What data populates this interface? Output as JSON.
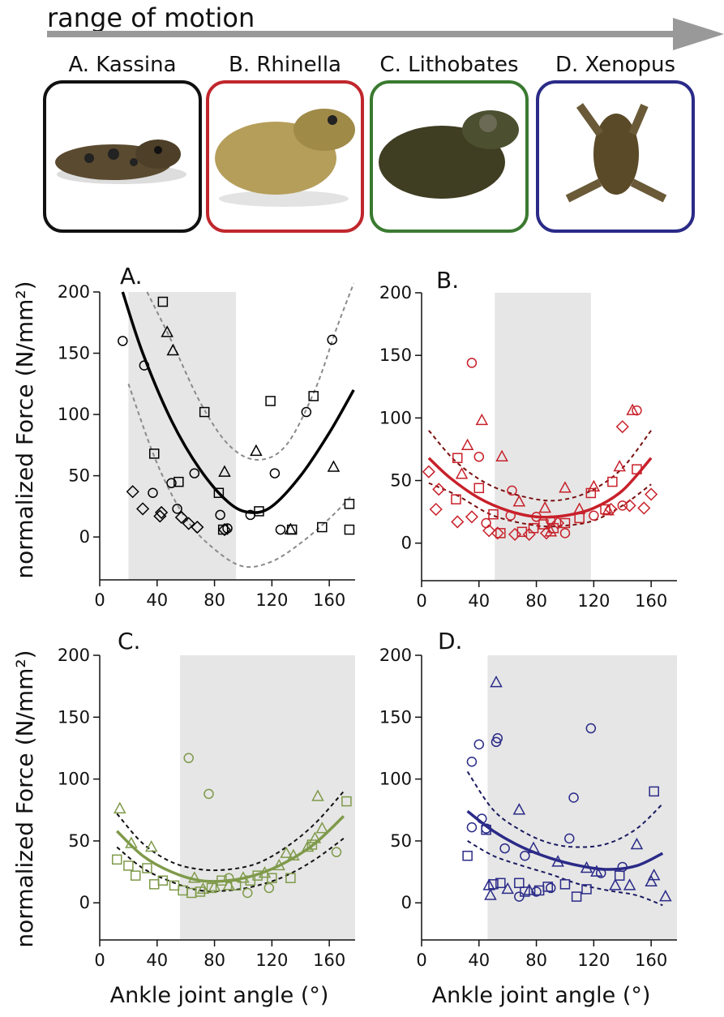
{
  "header": {
    "title": "range of motion"
  },
  "species": [
    {
      "label": "A. Kassina",
      "color": "#111111"
    },
    {
      "label": "B. Rhinella",
      "color": "#c0272d"
    },
    {
      "label": "C. Lithobates",
      "color": "#3a7a30"
    },
    {
      "label": "D. Xenopus",
      "color": "#2a2a88"
    }
  ],
  "chart_data": [
    {
      "type": "scatter",
      "title": "A.",
      "ylabel": "normalized Force (N/mm²)",
      "xlim": [
        0,
        178
      ],
      "ylim": [
        -35,
        200
      ],
      "xticks": [
        0,
        40,
        80,
        120,
        160
      ],
      "yticks": [
        0,
        50,
        100,
        150,
        200
      ],
      "shaded_x": [
        20,
        95
      ],
      "color": "#000000",
      "ci_color": "#8a8a8a",
      "series": [
        {
          "marker": "circle",
          "x": [
            16,
            31,
            37,
            50,
            54,
            66,
            84,
            89,
            105,
            122,
            126,
            144,
            162
          ],
          "values": [
            160,
            140,
            36,
            44,
            23,
            52,
            18,
            7,
            18,
            52,
            6,
            102,
            161
          ]
        },
        {
          "marker": "triangle",
          "x": [
            47,
            51,
            87,
            109,
            133,
            163
          ],
          "values": [
            167,
            152,
            53,
            70,
            6,
            57
          ]
        },
        {
          "marker": "square",
          "x": [
            38,
            44,
            55,
            73,
            83,
            86,
            111,
            119,
            134,
            149,
            155,
            174,
            174
          ],
          "values": [
            68,
            192,
            45,
            102,
            36,
            6,
            21,
            111,
            6,
            115,
            8,
            27,
            6
          ]
        },
        {
          "marker": "diamond",
          "x": [
            23,
            30,
            42,
            43,
            57,
            62,
            68,
            87
          ],
          "values": [
            37,
            23,
            17,
            20,
            16,
            11,
            8,
            6
          ]
        }
      ],
      "fit": {
        "x": [
          16,
          30,
          50,
          70,
          90,
          105,
          120,
          140,
          160,
          177
        ],
        "values": [
          200,
          150,
          95,
          55,
          28,
          20,
          25,
          50,
          85,
          120
        ]
      },
      "ci_upper": {
        "x": [
          33,
          50,
          70,
          90,
          110,
          130,
          150,
          165,
          177
        ],
        "values": [
          200,
          160,
          110,
          75,
          63,
          75,
          120,
          170,
          207
        ]
      },
      "ci_lower": {
        "x": [
          20,
          40,
          60,
          80,
          100,
          120,
          140,
          160,
          175
        ],
        "values": [
          125,
          60,
          15,
          -10,
          -24,
          -20,
          -5,
          15,
          33
        ]
      }
    },
    {
      "type": "scatter",
      "title": "B.",
      "xlim": [
        0,
        178
      ],
      "ylim": [
        -30,
        200
      ],
      "xticks": [
        0,
        40,
        80,
        120,
        160
      ],
      "yticks": [
        0,
        50,
        100,
        150,
        200
      ],
      "shaded_x": [
        51,
        118
      ],
      "color": "#c8202a",
      "ci_color": "#7a1010",
      "series": [
        {
          "marker": "circle",
          "x": [
            35,
            40,
            63,
            62,
            80,
            90,
            100,
            120,
            140,
            150,
            45
          ],
          "values": [
            144,
            69,
            42,
            22,
            21,
            18,
            8,
            22,
            30,
            106,
            16
          ]
        },
        {
          "marker": "triangle",
          "x": [
            32,
            42,
            56,
            86,
            100,
            120,
            130,
            147,
            138,
            28,
            68,
            90,
            110
          ],
          "values": [
            78,
            98,
            69,
            28,
            44,
            45,
            26,
            106,
            61,
            55,
            33,
            9,
            27
          ]
        },
        {
          "marker": "square",
          "x": [
            25,
            40,
            55,
            70,
            78,
            92,
            100,
            110,
            118,
            128,
            133,
            150,
            24,
            50,
            85
          ],
          "values": [
            68,
            44,
            8,
            9,
            12,
            12,
            16,
            20,
            40,
            27,
            49,
            59,
            35,
            23,
            15
          ]
        },
        {
          "marker": "diamond",
          "x": [
            5,
            12,
            10,
            25,
            35,
            47,
            53,
            65,
            75,
            87,
            95,
            132,
            140,
            145,
            155,
            160
          ],
          "values": [
            57,
            43,
            27,
            17,
            21,
            10,
            8,
            7,
            7,
            8,
            16,
            27,
            93,
            30,
            28,
            39
          ]
        }
      ],
      "fit": {
        "x": [
          5,
          20,
          40,
          60,
          80,
          100,
          120,
          140,
          160
        ],
        "values": [
          68,
          52,
          36,
          26,
          21,
          22,
          28,
          42,
          68
        ]
      },
      "ci_upper": {
        "x": [
          5,
          25,
          50,
          80,
          100,
          120,
          140,
          160
        ],
        "values": [
          90,
          64,
          45,
          35,
          35,
          43,
          60,
          90
        ]
      },
      "ci_lower": {
        "x": [
          5,
          25,
          50,
          80,
          100,
          120,
          140,
          160
        ],
        "values": [
          48,
          38,
          22,
          14,
          14,
          18,
          30,
          47
        ]
      }
    },
    {
      "type": "scatter",
      "title": "C.",
      "ylabel": "normalized Force (N/mm²)",
      "xlabel": "Ankle joint angle (°)",
      "xlim": [
        0,
        178
      ],
      "ylim": [
        -30,
        200
      ],
      "xticks": [
        0,
        40,
        80,
        120,
        160
      ],
      "yticks": [
        0,
        50,
        100,
        150,
        200
      ],
      "shaded_x": [
        56,
        178
      ],
      "color": "#7f9a4a",
      "ci_color": "#111111",
      "series": [
        {
          "marker": "circle",
          "x": [
            62,
            76,
            103,
            118,
            165,
            90
          ],
          "values": [
            117,
            88,
            8,
            12,
            41,
            20
          ]
        },
        {
          "marker": "triangle",
          "x": [
            14,
            22,
            36,
            66,
            72,
            80,
            90,
            100,
            115,
            125,
            135,
            145,
            150,
            155,
            152,
            130
          ],
          "values": [
            76,
            48,
            45,
            20,
            11,
            13,
            14,
            20,
            24,
            30,
            38,
            45,
            52,
            60,
            86,
            40
          ]
        },
        {
          "marker": "square",
          "x": [
            12,
            20,
            25,
            33,
            38,
            44,
            52,
            58,
            64,
            70,
            78,
            85,
            95,
            105,
            110,
            120,
            133,
            148,
            172
          ],
          "values": [
            35,
            30,
            22,
            28,
            15,
            18,
            14,
            10,
            8,
            9,
            12,
            18,
            14,
            18,
            22,
            20,
            20,
            47,
            82
          ]
        }
      ],
      "fit": {
        "x": [
          12,
          30,
          50,
          70,
          90,
          110,
          130,
          150,
          170
        ],
        "values": [
          58,
          38,
          25,
          18,
          18,
          23,
          33,
          48,
          70
        ]
      },
      "ci_upper": {
        "x": [
          12,
          30,
          50,
          70,
          90,
          110,
          130,
          150,
          170
        ],
        "values": [
          72,
          48,
          33,
          27,
          27,
          32,
          45,
          64,
          90
        ]
      },
      "ci_lower": {
        "x": [
          12,
          30,
          50,
          70,
          90,
          110,
          130,
          150,
          170
        ],
        "values": [
          45,
          28,
          17,
          10,
          10,
          14,
          22,
          35,
          52
        ]
      }
    },
    {
      "type": "scatter",
      "title": "D.",
      "xlabel": "Ankle joint angle (°)",
      "xlim": [
        0,
        178
      ],
      "ylim": [
        -30,
        200
      ],
      "xticks": [
        0,
        40,
        80,
        120,
        160
      ],
      "yticks": [
        0,
        50,
        100,
        150,
        200
      ],
      "shaded_x": [
        46,
        178
      ],
      "color": "#2a2a88",
      "ci_color": "#1a1a60",
      "series": [
        {
          "marker": "circle",
          "x": [
            35,
            40,
            52,
            53,
            35,
            42,
            45,
            68,
            72,
            80,
            90,
            103,
            106,
            118,
            125,
            140,
            58
          ],
          "values": [
            114,
            128,
            130,
            133,
            61,
            68,
            60,
            5,
            38,
            9,
            12,
            52,
            85,
            141,
            24,
            29,
            44
          ]
        },
        {
          "marker": "triangle",
          "x": [
            52,
            47,
            48,
            60,
            68,
            75,
            78,
            95,
            115,
            122,
            135,
            145,
            150,
            160,
            162,
            170
          ],
          "values": [
            178,
            14,
            6,
            11,
            75,
            10,
            44,
            33,
            28,
            25,
            14,
            14,
            47,
            17,
            22,
            5
          ]
        },
        {
          "marker": "square",
          "x": [
            32,
            45,
            50,
            55,
            68,
            72,
            82,
            88,
            100,
            108,
            115,
            138,
            162
          ],
          "values": [
            38,
            59,
            15,
            16,
            16,
            9,
            10,
            13,
            15,
            5,
            11,
            22,
            90
          ]
        }
      ],
      "fit": {
        "x": [
          32,
          50,
          70,
          90,
          110,
          130,
          150,
          168
        ],
        "values": [
          74,
          58,
          45,
          36,
          30,
          27,
          30,
          40
        ]
      },
      "ci_upper": {
        "x": [
          32,
          50,
          70,
          90,
          110,
          130,
          150,
          168
        ],
        "values": [
          106,
          75,
          58,
          48,
          45,
          48,
          60,
          80
        ]
      },
      "ci_lower": {
        "x": [
          32,
          50,
          70,
          90,
          110,
          130,
          150,
          168
        ],
        "values": [
          50,
          38,
          30,
          23,
          15,
          10,
          6,
          -2
        ]
      }
    }
  ]
}
